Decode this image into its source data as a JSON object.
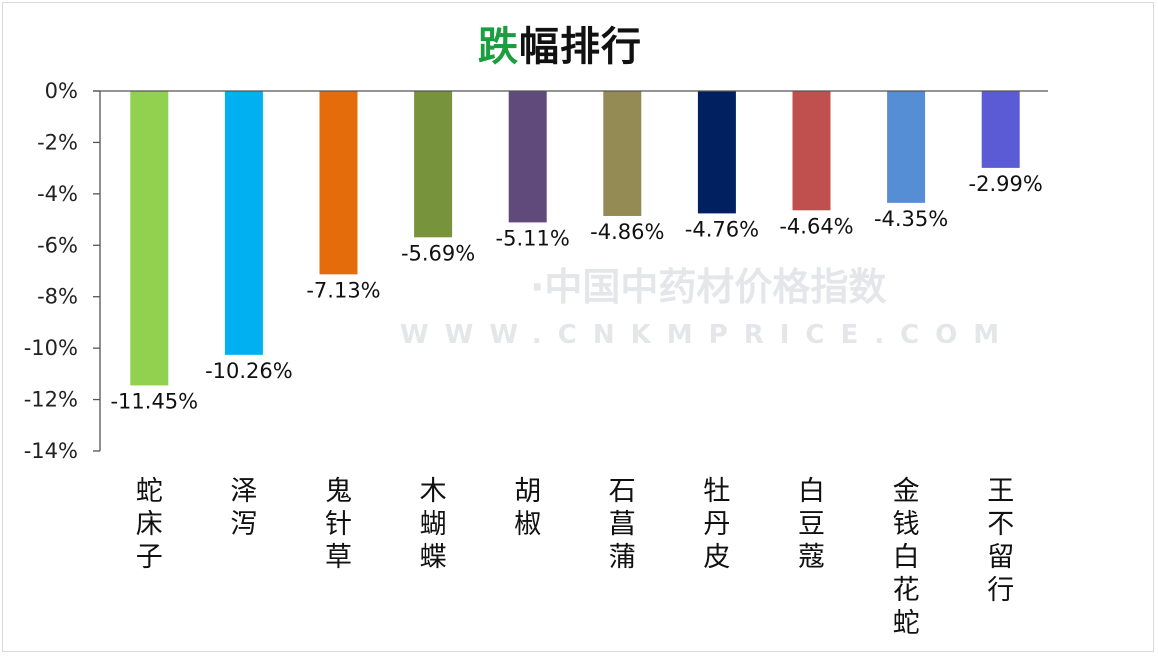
{
  "chart_data": {
    "type": "bar",
    "title_parts": [
      {
        "text": "跌",
        "accent": true
      },
      {
        "text": "幅排行",
        "accent": false
      }
    ],
    "categories": [
      "蛇床子",
      "泽泻",
      "鬼针草",
      "木蝴蝶",
      "胡椒",
      "石菖蒲",
      "牡丹皮",
      "白豆蔻",
      "金钱白花蛇",
      "王不留行"
    ],
    "values": [
      -11.45,
      -10.26,
      -7.13,
      -5.69,
      -5.11,
      -4.86,
      -4.76,
      -4.64,
      -4.35,
      -2.99
    ],
    "data_labels": [
      "-11.45%",
      "-10.26%",
      "-7.13%",
      "-5.69%",
      "-5.11%",
      "-4.86%",
      "-4.76%",
      "-4.64%",
      "-4.35%",
      "-2.99%"
    ],
    "colors": [
      "#92d050",
      "#00b0f0",
      "#e46c0a",
      "#77933c",
      "#604a7b",
      "#948a54",
      "#002060",
      "#c0504d",
      "#558ed5",
      "#5b5bd6"
    ],
    "y_ticks": [
      0,
      -2,
      -4,
      -6,
      -8,
      -10,
      -12,
      -14
    ],
    "y_tick_labels": [
      "0%",
      "-2%",
      "-4%",
      "-6%",
      "-8%",
      "-10%",
      "-12%",
      "-14%"
    ],
    "ylim": [
      -14,
      0
    ],
    "grid": false,
    "legend": "none",
    "xlabel": "",
    "ylabel": ""
  },
  "watermark": {
    "line1": "·中国中药材价格指数",
    "line2": "WWW.CNKMPRICE.COM"
  }
}
